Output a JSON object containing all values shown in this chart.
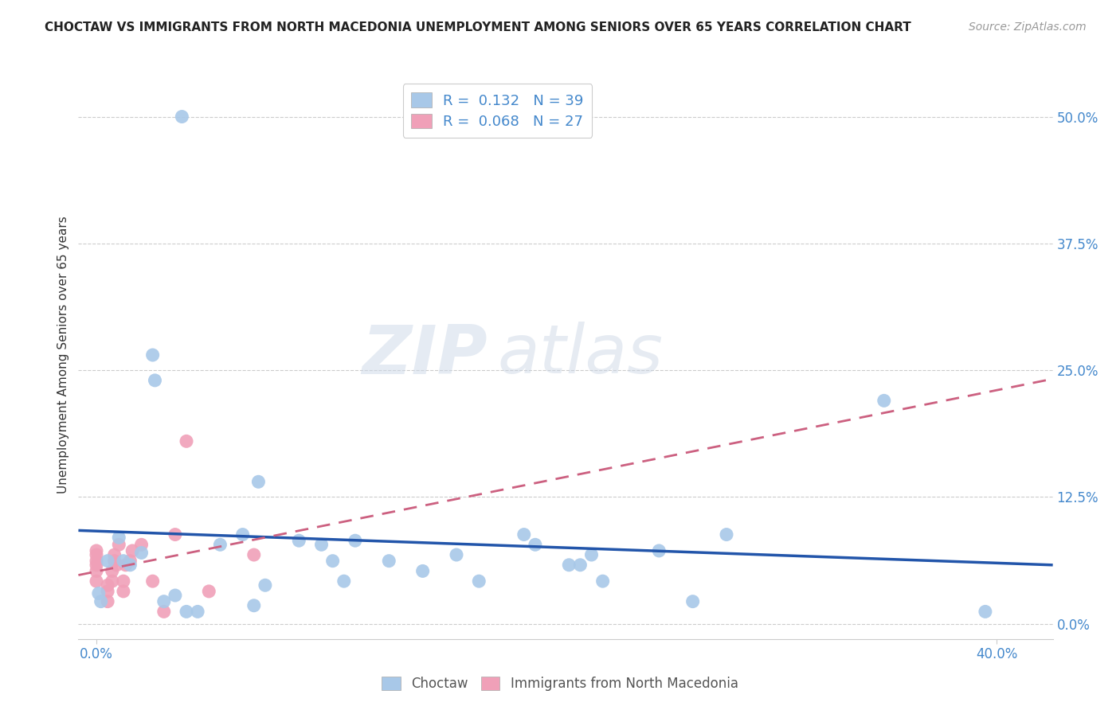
{
  "title": "CHOCTAW VS IMMIGRANTS FROM NORTH MACEDONIA UNEMPLOYMENT AMONG SENIORS OVER 65 YEARS CORRELATION CHART",
  "source": "Source: ZipAtlas.com",
  "ylabel": "Unemployment Among Seniors over 65 years",
  "ylabel_ticks": [
    "0.0%",
    "12.5%",
    "25.0%",
    "37.5%",
    "50.0%"
  ],
  "ylabel_tick_vals": [
    0.0,
    0.125,
    0.25,
    0.375,
    0.5
  ],
  "xlabel_ticks": [
    "0.0%",
    "40.0%"
  ],
  "xlabel_tick_vals": [
    0.0,
    0.4
  ],
  "xlim": [
    -0.008,
    0.425
  ],
  "ylim": [
    -0.015,
    0.545
  ],
  "choctaw_R": 0.132,
  "choctaw_N": 39,
  "macedonia_R": 0.068,
  "macedonia_N": 27,
  "choctaw_color": "#a8c8e8",
  "choctaw_line_color": "#2255aa",
  "macedonia_color": "#f0a0b8",
  "macedonia_line_color": "#cc6080",
  "watermark_zip": "ZIP",
  "watermark_atlas": "atlas",
  "choctaw_x": [
    0.038,
    0.001,
    0.002,
    0.005,
    0.01,
    0.012,
    0.015,
    0.02,
    0.025,
    0.026,
    0.03,
    0.035,
    0.04,
    0.045,
    0.055,
    0.065,
    0.07,
    0.072,
    0.075,
    0.09,
    0.1,
    0.105,
    0.11,
    0.115,
    0.13,
    0.145,
    0.16,
    0.17,
    0.19,
    0.195,
    0.21,
    0.215,
    0.22,
    0.225,
    0.25,
    0.265,
    0.28,
    0.35,
    0.395
  ],
  "choctaw_y": [
    0.5,
    0.03,
    0.022,
    0.062,
    0.085,
    0.062,
    0.058,
    0.07,
    0.265,
    0.24,
    0.022,
    0.028,
    0.012,
    0.012,
    0.078,
    0.088,
    0.018,
    0.14,
    0.038,
    0.082,
    0.078,
    0.062,
    0.042,
    0.082,
    0.062,
    0.052,
    0.068,
    0.042,
    0.088,
    0.078,
    0.058,
    0.058,
    0.068,
    0.042,
    0.072,
    0.022,
    0.088,
    0.22,
    0.012
  ],
  "macedonia_x": [
    0.0,
    0.0,
    0.0,
    0.0,
    0.0,
    0.0,
    0.005,
    0.005,
    0.005,
    0.007,
    0.007,
    0.008,
    0.008,
    0.009,
    0.01,
    0.012,
    0.012,
    0.013,
    0.015,
    0.016,
    0.02,
    0.025,
    0.03,
    0.035,
    0.04,
    0.05,
    0.07
  ],
  "macedonia_y": [
    0.042,
    0.052,
    0.058,
    0.062,
    0.068,
    0.072,
    0.022,
    0.032,
    0.038,
    0.042,
    0.052,
    0.062,
    0.068,
    0.058,
    0.078,
    0.032,
    0.042,
    0.058,
    0.062,
    0.072,
    0.078,
    0.042,
    0.012,
    0.088,
    0.18,
    0.032,
    0.068
  ],
  "grid_color": "#cccccc",
  "spine_color": "#cccccc",
  "tick_color": "#4488cc",
  "title_fontsize": 11,
  "source_fontsize": 10,
  "axis_fontsize": 12,
  "ylabel_fontsize": 11
}
